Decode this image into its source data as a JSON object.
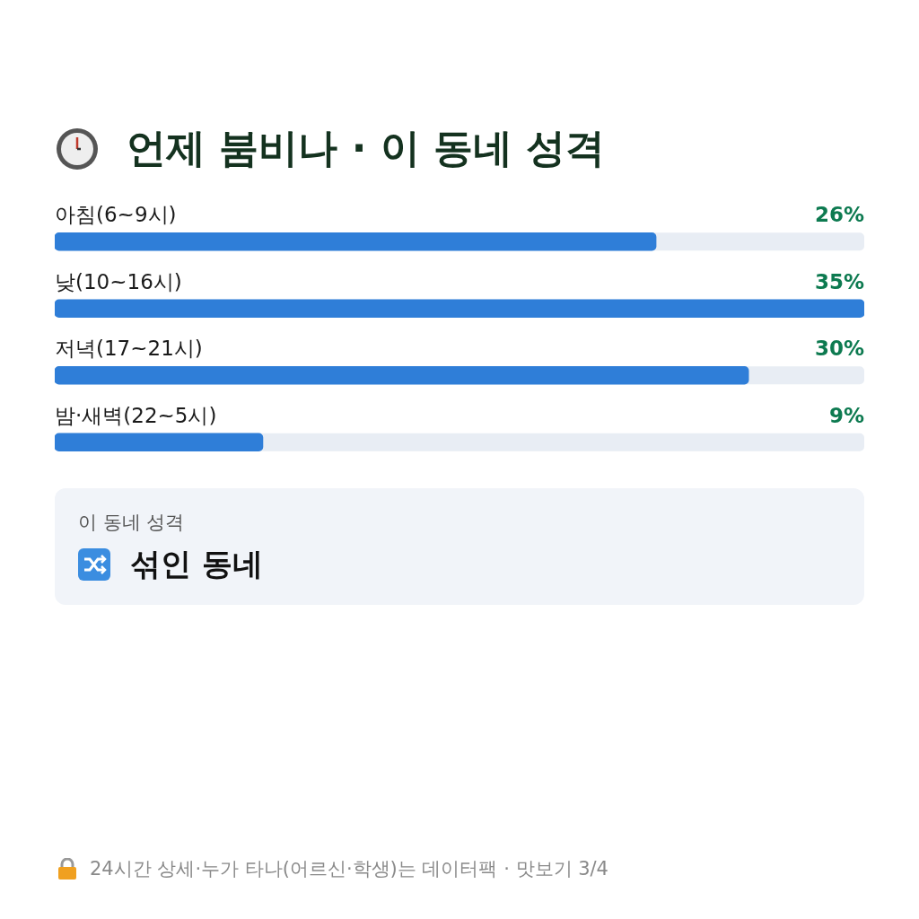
{
  "chart_data": {
    "type": "bar",
    "orientation": "horizontal",
    "title": "언제 붐비나 · 이 동네 성격",
    "categories": [
      "아침(6~9시)",
      "낮(10~16시)",
      "저녁(17~21시)",
      "밤·새벽(22~5시)"
    ],
    "values": [
      26,
      35,
      30,
      9
    ],
    "value_labels": [
      "26%",
      "35%",
      "30%",
      "9%"
    ],
    "color": "#2f7ed8",
    "legend": false,
    "annotations": [
      "이 동네 성격",
      "섞인 동네",
      "24시간 상세·누가 타나(어르신·학생)는 데이터팩 · 맛보기 3/4"
    ]
  }
}
